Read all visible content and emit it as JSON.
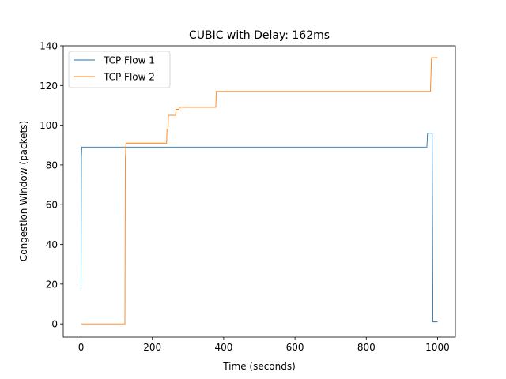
{
  "chart_data": {
    "type": "line",
    "title": "CUBIC with Delay: 162ms",
    "xlabel": "Time (seconds)",
    "ylabel": "Congestion Window (packets)",
    "xlim": [
      -50,
      1050
    ],
    "ylim": [
      -6.7,
      140
    ],
    "xticks": [
      0,
      200,
      400,
      600,
      800,
      1000
    ],
    "yticks": [
      0,
      20,
      40,
      60,
      80,
      100,
      120,
      140
    ],
    "xtick_labels": [
      "0",
      "200",
      "400",
      "600",
      "800",
      "1000"
    ],
    "ytick_labels": [
      "0",
      "20",
      "40",
      "60",
      "80",
      "100",
      "120",
      "140"
    ],
    "grid": false,
    "legend_position": "top-left",
    "series": [
      {
        "name": "TCP Flow 1",
        "color": "#1f77b4",
        "points": [
          [
            0,
            19
          ],
          [
            1,
            84
          ],
          [
            2,
            89
          ],
          [
            970,
            89
          ],
          [
            972,
            96
          ],
          [
            985,
            96
          ],
          [
            987,
            1
          ],
          [
            1000,
            1
          ]
        ]
      },
      {
        "name": "TCP Flow 2",
        "color": "#ff7f0e",
        "points": [
          [
            0,
            0
          ],
          [
            123,
            0
          ],
          [
            124,
            82
          ],
          [
            126,
            91
          ],
          [
            240,
            91
          ],
          [
            241,
            98
          ],
          [
            244,
            98
          ],
          [
            245,
            105
          ],
          [
            265,
            105
          ],
          [
            266,
            108
          ],
          [
            275,
            108
          ],
          [
            276,
            109
          ],
          [
            378,
            109
          ],
          [
            379,
            117
          ],
          [
            980,
            117
          ],
          [
            983,
            134
          ],
          [
            1000,
            134
          ]
        ]
      }
    ]
  }
}
